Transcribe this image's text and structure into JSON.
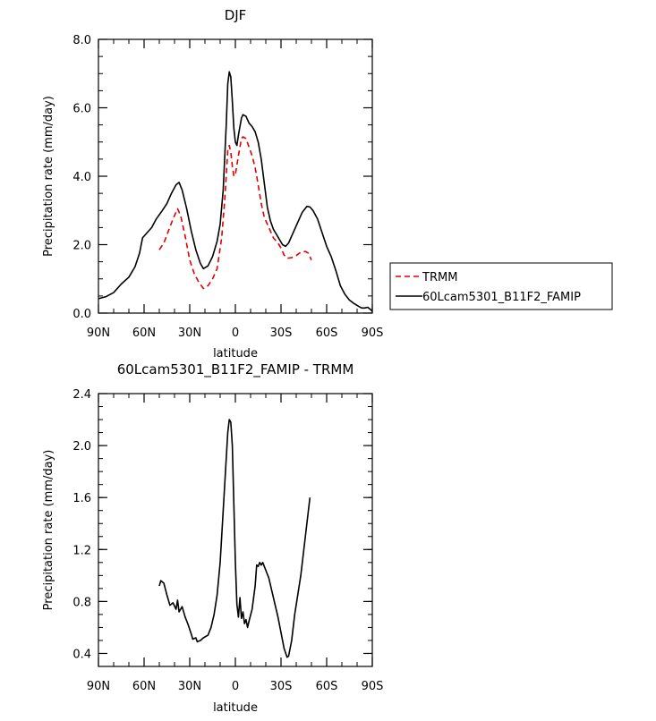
{
  "chart_data": [
    {
      "type": "line",
      "title": "DJF",
      "xlabel": "latitude",
      "ylabel": "Precipitation rate (mm/day)",
      "xlim": [
        90,
        -90
      ],
      "ylim": [
        0,
        8
      ],
      "x_ticks": [
        {
          "value": 90,
          "label": "90N"
        },
        {
          "value": 60,
          "label": "60N"
        },
        {
          "value": 30,
          "label": "30N"
        },
        {
          "value": 0,
          "label": "0"
        },
        {
          "value": -30,
          "label": "30S"
        },
        {
          "value": -60,
          "label": "60S"
        },
        {
          "value": -90,
          "label": "90S"
        }
      ],
      "y_ticks": [
        {
          "value": 0,
          "label": "0.0"
        },
        {
          "value": 2,
          "label": "2.0"
        },
        {
          "value": 4,
          "label": "4.0"
        },
        {
          "value": 6,
          "label": "6.0"
        },
        {
          "value": 8,
          "label": "8.0"
        }
      ],
      "legend": {
        "placement": "right",
        "entries": [
          "TRMM",
          "60Lcam5301_B11F2_FAMIP"
        ]
      },
      "series": [
        {
          "name": "TRMM",
          "color": "#e00000",
          "dash": "dashed",
          "points": [
            [
              50,
              1.85
            ],
            [
              47,
              2.05
            ],
            [
              44,
              2.4
            ],
            [
              41,
              2.75
            ],
            [
              38,
              3.05
            ],
            [
              36,
              2.85
            ],
            [
              33,
              2.25
            ],
            [
              30,
              1.55
            ],
            [
              27,
              1.15
            ],
            [
              24,
              0.9
            ],
            [
              21,
              0.72
            ],
            [
              18,
              0.8
            ],
            [
              15,
              1.0
            ],
            [
              12,
              1.3
            ],
            [
              9,
              2.2
            ],
            [
              7,
              3.3
            ],
            [
              5,
              4.75
            ],
            [
              4,
              4.9
            ],
            [
              3,
              4.7
            ],
            [
              2,
              4.3
            ],
            [
              1,
              4.0
            ],
            [
              0,
              4.05
            ],
            [
              -2,
              4.6
            ],
            [
              -4,
              5.1
            ],
            [
              -5,
              5.15
            ],
            [
              -7,
              5.1
            ],
            [
              -9,
              4.85
            ],
            [
              -11,
              4.6
            ],
            [
              -13,
              4.25
            ],
            [
              -15,
              3.75
            ],
            [
              -17,
              3.2
            ],
            [
              -19,
              2.8
            ],
            [
              -22,
              2.5
            ],
            [
              -25,
              2.2
            ],
            [
              -28,
              2.05
            ],
            [
              -30,
              1.9
            ],
            [
              -32,
              1.7
            ],
            [
              -34,
              1.6
            ],
            [
              -37,
              1.62
            ],
            [
              -40,
              1.68
            ],
            [
              -43,
              1.78
            ],
            [
              -46,
              1.8
            ],
            [
              -48,
              1.75
            ],
            [
              -50,
              1.55
            ]
          ]
        },
        {
          "name": "60Lcam5301_B11F2_FAMIP",
          "color": "#000000",
          "dash": "solid",
          "points": [
            [
              90,
              0.42
            ],
            [
              85,
              0.48
            ],
            [
              80,
              0.6
            ],
            [
              75,
              0.85
            ],
            [
              70,
              1.05
            ],
            [
              66,
              1.35
            ],
            [
              63,
              1.75
            ],
            [
              61,
              2.2
            ],
            [
              58,
              2.35
            ],
            [
              55,
              2.5
            ],
            [
              52,
              2.75
            ],
            [
              48,
              3.0
            ],
            [
              45,
              3.2
            ],
            [
              42,
              3.5
            ],
            [
              39,
              3.75
            ],
            [
              37,
              3.82
            ],
            [
              35,
              3.6
            ],
            [
              32,
              3.05
            ],
            [
              29,
              2.4
            ],
            [
              26,
              1.85
            ],
            [
              23,
              1.45
            ],
            [
              21,
              1.3
            ],
            [
              18,
              1.38
            ],
            [
              15,
              1.65
            ],
            [
              12,
              2.1
            ],
            [
              10,
              2.6
            ],
            [
              8,
              3.6
            ],
            [
              6,
              5.5
            ],
            [
              5,
              6.7
            ],
            [
              4,
              7.05
            ],
            [
              3,
              6.9
            ],
            [
              2,
              6.2
            ],
            [
              1,
              5.4
            ],
            [
              0,
              5.0
            ],
            [
              -1,
              4.9
            ],
            [
              -2,
              5.2
            ],
            [
              -4,
              5.7
            ],
            [
              -5,
              5.8
            ],
            [
              -7,
              5.75
            ],
            [
              -9,
              5.55
            ],
            [
              -11,
              5.45
            ],
            [
              -13,
              5.3
            ],
            [
              -15,
              5.0
            ],
            [
              -17,
              4.5
            ],
            [
              -19,
              3.8
            ],
            [
              -21,
              3.1
            ],
            [
              -23,
              2.7
            ],
            [
              -25,
              2.45
            ],
            [
              -27,
              2.3
            ],
            [
              -29,
              2.15
            ],
            [
              -31,
              2.0
            ],
            [
              -33,
              1.95
            ],
            [
              -35,
              2.05
            ],
            [
              -38,
              2.35
            ],
            [
              -41,
              2.65
            ],
            [
              -44,
              2.95
            ],
            [
              -47,
              3.12
            ],
            [
              -49,
              3.1
            ],
            [
              -51,
              3.0
            ],
            [
              -54,
              2.75
            ],
            [
              -57,
              2.35
            ],
            [
              -60,
              1.95
            ],
            [
              -63,
              1.65
            ],
            [
              -66,
              1.25
            ],
            [
              -69,
              0.8
            ],
            [
              -72,
              0.55
            ],
            [
              -75,
              0.38
            ],
            [
              -78,
              0.28
            ],
            [
              -81,
              0.2
            ],
            [
              -83,
              0.15
            ],
            [
              -85,
              0.15
            ],
            [
              -87,
              0.17
            ],
            [
              -89,
              0.1
            ],
            [
              -90,
              0.05
            ]
          ]
        }
      ]
    },
    {
      "type": "line",
      "title": "60Lcam5301_B11F2_FAMIP - TRMM",
      "xlabel": "latitude",
      "ylabel": "Precipitation rate (mm/day)",
      "xlim": [
        90,
        -90
      ],
      "ylim": [
        0.3,
        2.4
      ],
      "x_ticks": [
        {
          "value": 90,
          "label": "90N"
        },
        {
          "value": 60,
          "label": "60N"
        },
        {
          "value": 30,
          "label": "30N"
        },
        {
          "value": 0,
          "label": "0"
        },
        {
          "value": -30,
          "label": "30S"
        },
        {
          "value": -60,
          "label": "60S"
        },
        {
          "value": -90,
          "label": "90S"
        }
      ],
      "y_ticks": [
        {
          "value": 0.4,
          "label": "0.4"
        },
        {
          "value": 0.8,
          "label": "0.8"
        },
        {
          "value": 1.2,
          "label": "1.2"
        },
        {
          "value": 1.6,
          "label": "1.6"
        },
        {
          "value": 2.0,
          "label": "2.0"
        },
        {
          "value": 2.4,
          "label": "2.4"
        }
      ],
      "series": [
        {
          "color": "#000000",
          "dash": "solid",
          "points": [
            [
              50,
              0.92
            ],
            [
              49,
              0.96
            ],
            [
              47,
              0.94
            ],
            [
              45,
              0.85
            ],
            [
              43,
              0.77
            ],
            [
              41,
              0.79
            ],
            [
              39,
              0.74
            ],
            [
              38,
              0.81
            ],
            [
              37,
              0.72
            ],
            [
              35,
              0.76
            ],
            [
              33,
              0.68
            ],
            [
              31,
              0.62
            ],
            [
              29,
              0.55
            ],
            [
              28,
              0.51
            ],
            [
              26,
              0.52
            ],
            [
              25,
              0.49
            ],
            [
              23,
              0.5
            ],
            [
              21,
              0.52
            ],
            [
              18,
              0.54
            ],
            [
              16,
              0.6
            ],
            [
              14,
              0.7
            ],
            [
              12,
              0.85
            ],
            [
              10,
              1.1
            ],
            [
              8,
              1.5
            ],
            [
              6,
              1.9
            ],
            [
              5,
              2.1
            ],
            [
              4,
              2.2
            ],
            [
              3,
              2.18
            ],
            [
              2,
              2.0
            ],
            [
              1,
              1.55
            ],
            [
              0,
              1.1
            ],
            [
              -1,
              0.78
            ],
            [
              -2,
              0.68
            ],
            [
              -3,
              0.83
            ],
            [
              -4,
              0.67
            ],
            [
              -5,
              0.72
            ],
            [
              -6,
              0.63
            ],
            [
              -7,
              0.66
            ],
            [
              -8,
              0.6
            ],
            [
              -9,
              0.65
            ],
            [
              -11,
              0.74
            ],
            [
              -13,
              0.92
            ],
            [
              -14,
              1.08
            ],
            [
              -15,
              1.07
            ],
            [
              -16,
              1.1
            ],
            [
              -17,
              1.08
            ],
            [
              -18,
              1.1
            ],
            [
              -20,
              1.04
            ],
            [
              -22,
              0.98
            ],
            [
              -24,
              0.88
            ],
            [
              -26,
              0.78
            ],
            [
              -28,
              0.68
            ],
            [
              -30,
              0.56
            ],
            [
              -32,
              0.44
            ],
            [
              -34,
              0.37
            ],
            [
              -35,
              0.38
            ],
            [
              -37,
              0.5
            ],
            [
              -39,
              0.7
            ],
            [
              -41,
              0.85
            ],
            [
              -43,
              1.0
            ],
            [
              -45,
              1.2
            ],
            [
              -47,
              1.4
            ],
            [
              -49,
              1.6
            ]
          ]
        }
      ]
    }
  ]
}
